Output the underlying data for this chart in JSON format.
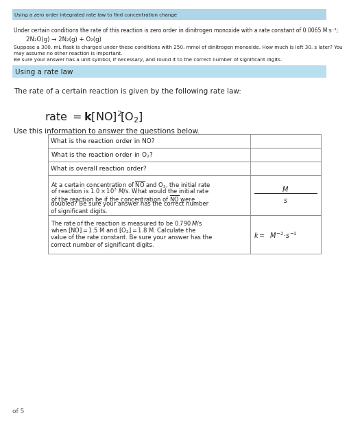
{
  "bg_color": "#ffffff",
  "header_bg": "#aed6e8",
  "header_text": "Using a zero order integrated rate law to find concentration change",
  "section_header_bg": "#b8dff0",
  "section_header_text": "Using a rate law",
  "intro_line1": "Under certain conditions the rate of this reaction is zero order in dinitrogen monoxide with a rate constant of 0.0065 M·s⁻¹;",
  "reaction_eq": "2N₂O(g) → 2N₂(g) + O₂(g)",
  "intro_line2a": "Suppose a 300. mL flask is charged under these conditions with 250. mmol of dinitrogen monoxide. How much is left 30. s later? You",
  "intro_line2b": "may assume no other reaction is important.",
  "intro_line3": "Be sure your answer has a unit symbol, if necessary, and round it to the correct number of significant digits.",
  "rate_intro": "The rate of a certain reaction is given by the following rate law:",
  "use_info": "Use this information to answer the questions below.",
  "footer_text": "of 5",
  "table_border_color": "#888888",
  "table_bg": "#ffffff",
  "text_color": "#222222"
}
